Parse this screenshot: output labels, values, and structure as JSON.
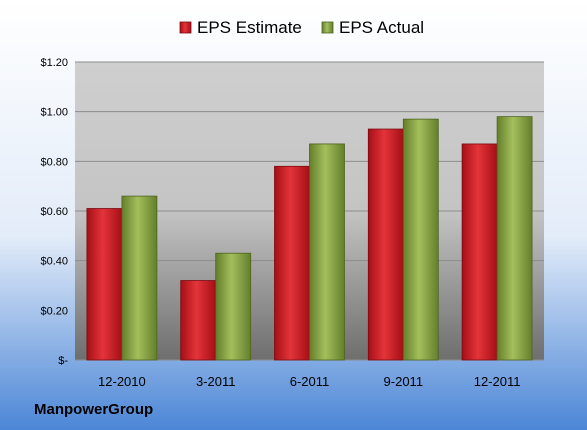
{
  "chart_data": {
    "type": "bar",
    "title": "",
    "xlabel": "",
    "ylabel": "",
    "categories": [
      "12-2010",
      "3-2011",
      "6-2011",
      "9-2011",
      "12-2011"
    ],
    "series": [
      {
        "name": "EPS Estimate",
        "values": [
          0.61,
          0.32,
          0.78,
          0.93,
          0.87
        ],
        "color": "#c0161c"
      },
      {
        "name": "EPS Actual",
        "values": [
          0.66,
          0.43,
          0.87,
          0.97,
          0.98
        ],
        "color": "#7b9a3c"
      }
    ],
    "ylim": [
      0,
      1.2
    ],
    "y_ticks": [
      {
        "value": 0,
        "label": "$-"
      },
      {
        "value": 0.2,
        "label": "$0.20"
      },
      {
        "value": 0.4,
        "label": "$0.40"
      },
      {
        "value": 0.6,
        "label": "$0.60"
      },
      {
        "value": 0.8,
        "label": "$0.80"
      },
      {
        "value": 1.0,
        "label": "$1.00"
      },
      {
        "value": 1.2,
        "label": "$1.20"
      }
    ],
    "grid": true,
    "legend_position": "top"
  },
  "footer": {
    "company": "ManpowerGroup"
  }
}
